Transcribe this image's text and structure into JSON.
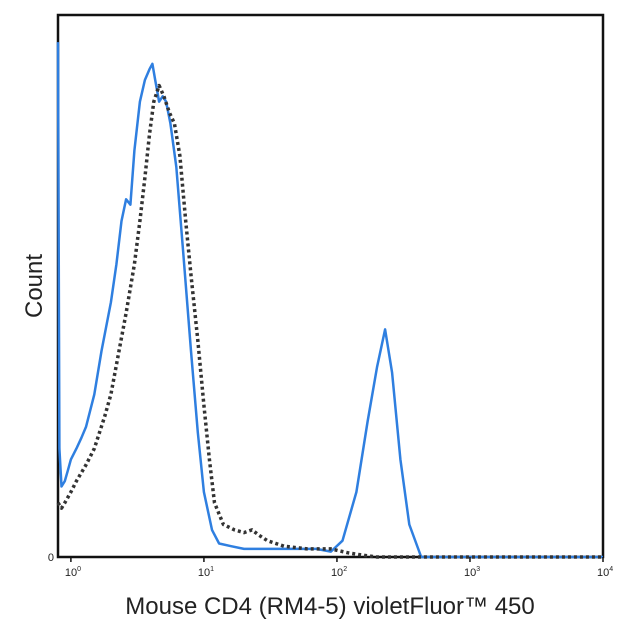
{
  "chart_data": {
    "type": "line",
    "xlabel": "Mouse CD4 (RM4-5) violetFluor™ 450",
    "ylabel": "Count",
    "x_scale": "log",
    "xlim": [
      0.8,
      10000
    ],
    "ylim": [
      0,
      100
    ],
    "x_ticks": [
      {
        "base": "10",
        "exp": "0",
        "value": 1
      },
      {
        "base": "10",
        "exp": "1",
        "value": 10
      },
      {
        "base": "10",
        "exp": "2",
        "value": 100
      },
      {
        "base": "10",
        "exp": "3",
        "value": 1000
      },
      {
        "base": "10",
        "exp": "4",
        "value": 10000
      }
    ],
    "y_ticks": [
      {
        "label": "0",
        "value": 0
      }
    ],
    "grid": false,
    "legend": "none",
    "series": [
      {
        "style": "solid",
        "color": "#2f7fe0",
        "points": [
          [
            0.8,
            95
          ],
          [
            0.82,
            20
          ],
          [
            0.85,
            13
          ],
          [
            0.9,
            14
          ],
          [
            0.95,
            16
          ],
          [
            1.0,
            18
          ],
          [
            1.1,
            20
          ],
          [
            1.2,
            22
          ],
          [
            1.3,
            24
          ],
          [
            1.5,
            30
          ],
          [
            1.7,
            38
          ],
          [
            2.0,
            47
          ],
          [
            2.2,
            54
          ],
          [
            2.4,
            62
          ],
          [
            2.6,
            66
          ],
          [
            2.8,
            65
          ],
          [
            3.0,
            75
          ],
          [
            3.3,
            84
          ],
          [
            3.6,
            88
          ],
          [
            3.9,
            90
          ],
          [
            4.1,
            91
          ],
          [
            4.3,
            88
          ],
          [
            4.6,
            84
          ],
          [
            4.9,
            85
          ],
          [
            5.2,
            84
          ],
          [
            5.6,
            80
          ],
          [
            6.2,
            72
          ],
          [
            7.0,
            56
          ],
          [
            8.0,
            38
          ],
          [
            9.0,
            23
          ],
          [
            10,
            12
          ],
          [
            11.5,
            5
          ],
          [
            13,
            2.5
          ],
          [
            16,
            2
          ],
          [
            20,
            1.5
          ],
          [
            30,
            1.5
          ],
          [
            50,
            1.5
          ],
          [
            70,
            1.5
          ],
          [
            90,
            1
          ],
          [
            110,
            3
          ],
          [
            140,
            12
          ],
          [
            170,
            25
          ],
          [
            200,
            35
          ],
          [
            230,
            42
          ],
          [
            260,
            34
          ],
          [
            300,
            18
          ],
          [
            350,
            6
          ],
          [
            430,
            0
          ],
          [
            10000,
            0
          ]
        ]
      },
      {
        "style": "dashed",
        "color": "#333333",
        "points": [
          [
            0.8,
            10
          ],
          [
            0.85,
            9
          ],
          [
            0.9,
            10
          ],
          [
            1.0,
            12
          ],
          [
            1.1,
            14
          ],
          [
            1.3,
            17
          ],
          [
            1.5,
            20
          ],
          [
            1.8,
            26
          ],
          [
            2.0,
            30
          ],
          [
            2.3,
            38
          ],
          [
            2.6,
            45
          ],
          [
            3.0,
            54
          ],
          [
            3.3,
            62
          ],
          [
            3.6,
            70
          ],
          [
            3.9,
            78
          ],
          [
            4.2,
            84
          ],
          [
            4.6,
            87
          ],
          [
            5.0,
            85
          ],
          [
            5.5,
            82
          ],
          [
            6.0,
            80
          ],
          [
            6.6,
            74
          ],
          [
            7.3,
            62
          ],
          [
            8.0,
            52
          ],
          [
            9.0,
            40
          ],
          [
            10,
            28
          ],
          [
            11,
            18
          ],
          [
            12,
            10
          ],
          [
            14,
            6
          ],
          [
            17,
            5
          ],
          [
            20,
            4.5
          ],
          [
            23,
            5
          ],
          [
            26,
            4
          ],
          [
            30,
            3
          ],
          [
            40,
            2
          ],
          [
            60,
            1.5
          ],
          [
            90,
            1.5
          ],
          [
            120,
            0.8
          ],
          [
            160,
            0.3
          ],
          [
            200,
            0
          ],
          [
            10000,
            0
          ]
        ]
      }
    ]
  }
}
